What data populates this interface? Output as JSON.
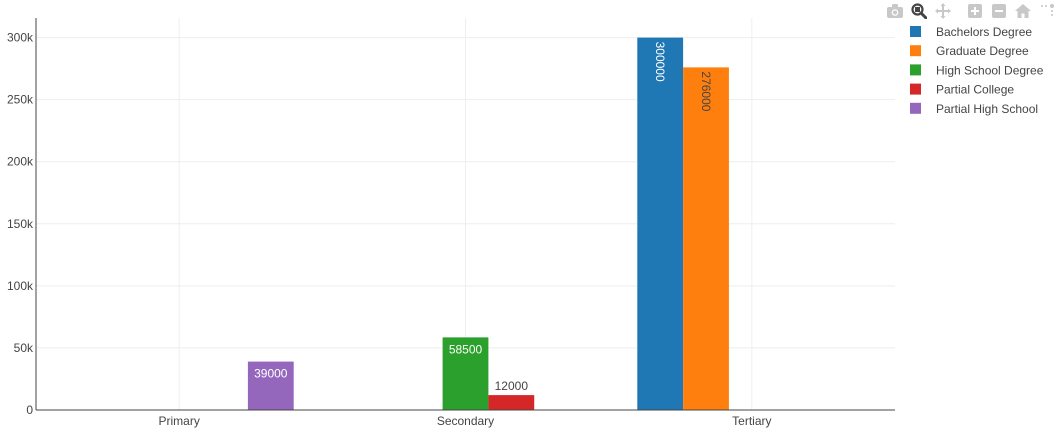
{
  "modebar": {
    "buttons": [
      {
        "icon": "camera-icon",
        "name": "download-plot-button"
      },
      {
        "icon": "zoom-icon",
        "name": "zoom-button",
        "active": true
      },
      {
        "icon": "pan-icon",
        "name": "pan-button"
      },
      {
        "icon": "zoom-in-icon",
        "name": "zoom-in-button"
      },
      {
        "icon": "zoom-out-icon",
        "name": "zoom-out-button"
      },
      {
        "icon": "home-icon",
        "name": "reset-axes-button"
      },
      {
        "icon": "spike-lines-icon",
        "name": "spike-lines-button"
      }
    ]
  },
  "chart_data": {
    "type": "bar",
    "categories": [
      "Primary",
      "Secondary",
      "Tertiary"
    ],
    "series": [
      {
        "name": "Bachelors Degree",
        "color": "#1f77b4",
        "values": [
          null,
          null,
          300000
        ],
        "label_color": "#ffffff"
      },
      {
        "name": "Graduate Degree",
        "color": "#ff7f0e",
        "values": [
          null,
          null,
          276000
        ],
        "label_color": "#444444"
      },
      {
        "name": "High School Degree",
        "color": "#2ca02c",
        "values": [
          null,
          58500,
          null
        ],
        "label_color": "#ffffff"
      },
      {
        "name": "Partial College",
        "color": "#d62728",
        "values": [
          null,
          12000,
          null
        ],
        "label_color": "#444444"
      },
      {
        "name": "Partial High School",
        "color": "#9467bd",
        "values": [
          39000,
          null,
          null
        ],
        "label_color": "#ffffff"
      }
    ],
    "ylim": [
      0,
      315789
    ],
    "yticks": [
      0,
      50000,
      100000,
      150000,
      200000,
      250000,
      300000
    ],
    "ytick_labels": [
      "0",
      "50k",
      "100k",
      "150k",
      "200k",
      "250k",
      "300k"
    ],
    "title": "",
    "xlabel": "",
    "ylabel": "",
    "grid": true,
    "legend_position": "top-right"
  }
}
